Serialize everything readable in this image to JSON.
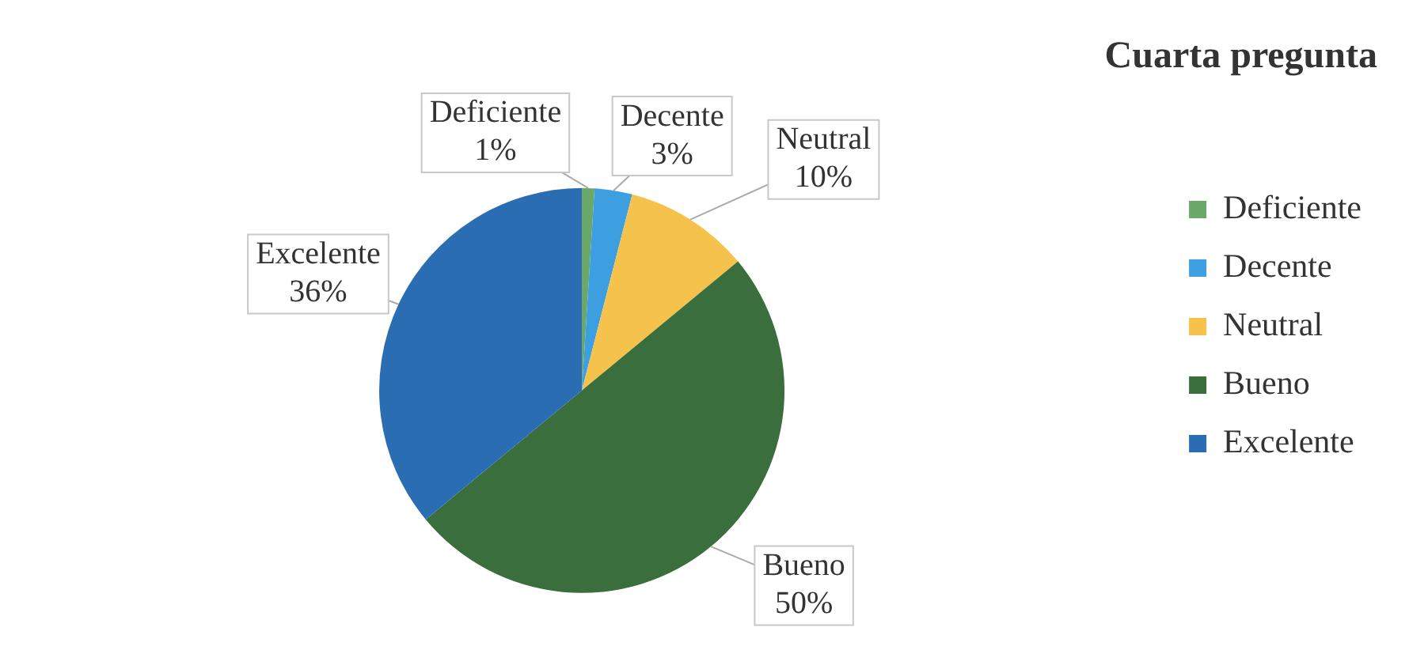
{
  "chart_data": {
    "type": "pie",
    "title": "Cuarta pregunta",
    "categories": [
      "Deficiente",
      "Decente",
      "Neutral",
      "Bueno",
      "Excelente"
    ],
    "values": [
      1,
      3,
      10,
      50,
      36
    ],
    "value_labels": [
      "1%",
      "3%",
      "10%",
      "50%",
      "36%"
    ],
    "colors": [
      "#6aa86a",
      "#3d9fe0",
      "#f5c24c",
      "#3b6e3d",
      "#2b6db3"
    ],
    "legend": "right"
  }
}
